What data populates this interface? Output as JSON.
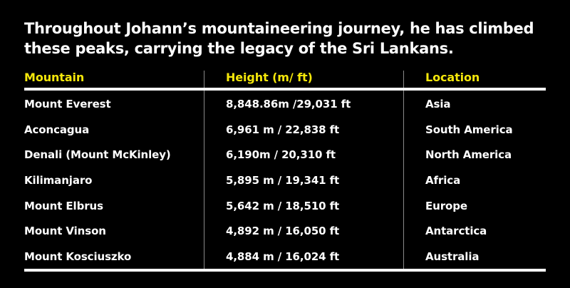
{
  "heading": "Throughout Johann’s mountaineering journey, he has climbed these peaks, carrying the legacy of the Sri Lankans.",
  "colors": {
    "background": "#000000",
    "header_text": "#f5e70a",
    "body_text": "#ffffff"
  },
  "table": {
    "headers": [
      "Mountain",
      "Height (m/ ft)",
      "Location"
    ],
    "rows": [
      [
        "Mount Everest",
        "8,848.86m /29,031 ft",
        "Asia"
      ],
      [
        "Aconcagua",
        "6,961 m / 22,838 ft",
        "South America"
      ],
      [
        "Denali (Mount McKinley)",
        "6,190m / 20,310 ft",
        "North America"
      ],
      [
        "Kilimanjaro",
        "5,895 m / 19,341 ft",
        "Africa"
      ],
      [
        "Mount Elbrus",
        "5,642 m / 18,510 ft",
        "Europe"
      ],
      [
        "Mount Vinson",
        "4,892 m / 16,050 ft",
        "Antarctica"
      ],
      [
        "Mount Kosciuszko",
        "4,884 m / 16,024 ft",
        "Australia"
      ]
    ]
  }
}
